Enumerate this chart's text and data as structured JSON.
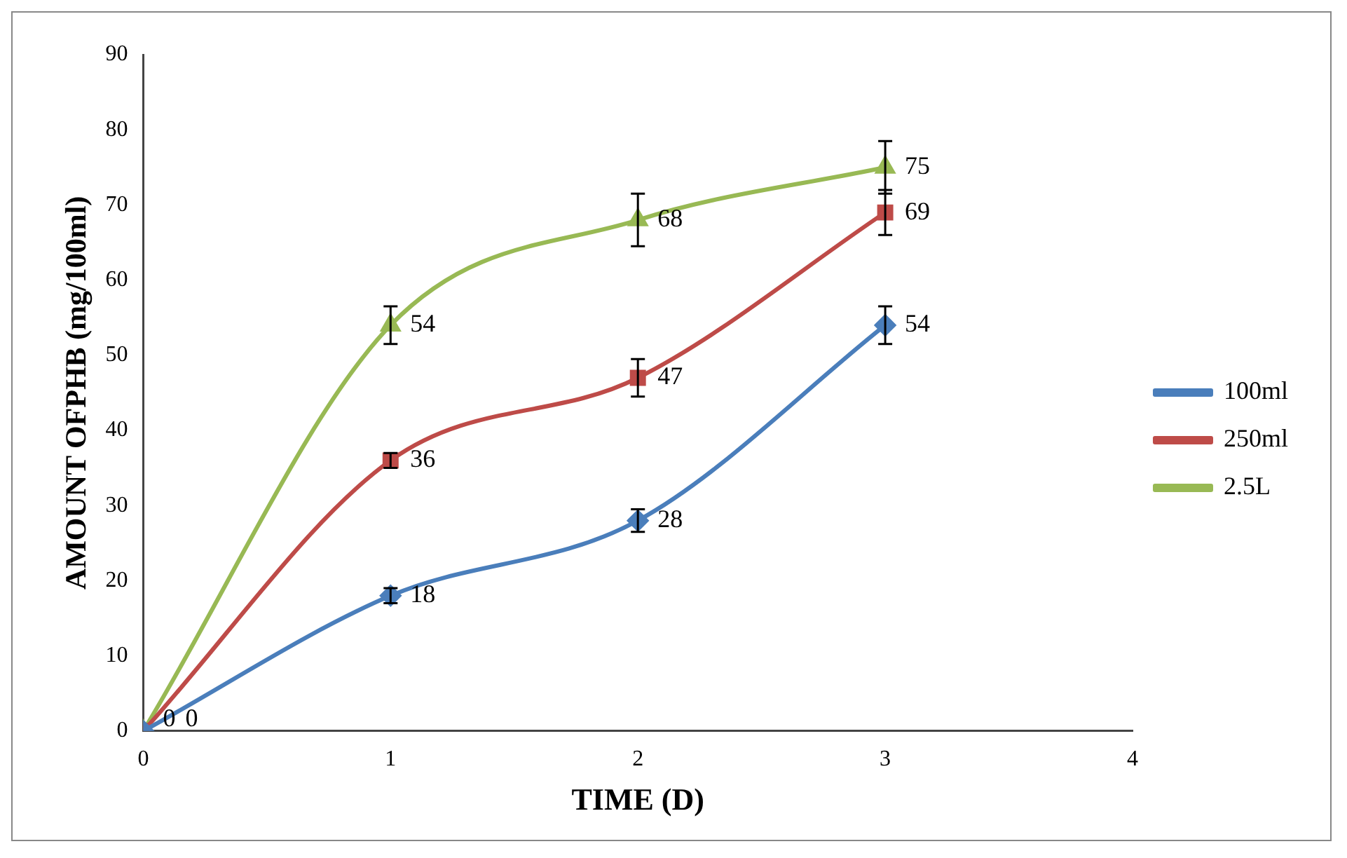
{
  "chart_data": {
    "type": "line",
    "xlabel": "TIME (D)",
    "ylabel": "AMOUNT OFPHB (mg/100ml)",
    "x": [
      0,
      1,
      2,
      3
    ],
    "xlim": [
      0,
      4
    ],
    "xticks": [
      0,
      1,
      2,
      3,
      4
    ],
    "ylim": [
      0,
      90
    ],
    "yticks": [
      0,
      10,
      20,
      30,
      40,
      50,
      60,
      70,
      80,
      90
    ],
    "grid": false,
    "legend": "right",
    "line_style": "solid",
    "series": [
      {
        "name": "100ml",
        "color": "#4a7ebb",
        "marker": "diamond",
        "values": [
          0,
          18,
          28,
          54
        ],
        "value_labels": [
          "0",
          "18",
          "28",
          "54"
        ],
        "errors": [
          null,
          1,
          1.5,
          2.5
        ]
      },
      {
        "name": "250ml",
        "color": "#be4b48",
        "marker": "square",
        "values": [
          0,
          36,
          47,
          69
        ],
        "value_labels": [
          "0",
          "36",
          "47",
          "69"
        ],
        "errors": [
          null,
          1,
          2.5,
          3
        ]
      },
      {
        "name": "2.5L",
        "color": "#98b954",
        "marker": "triangle",
        "values": [
          0,
          54,
          68,
          75
        ],
        "value_labels": [
          null,
          "54",
          "68",
          "75"
        ],
        "errors": [
          null,
          2.5,
          3.5,
          3.5
        ]
      }
    ]
  }
}
